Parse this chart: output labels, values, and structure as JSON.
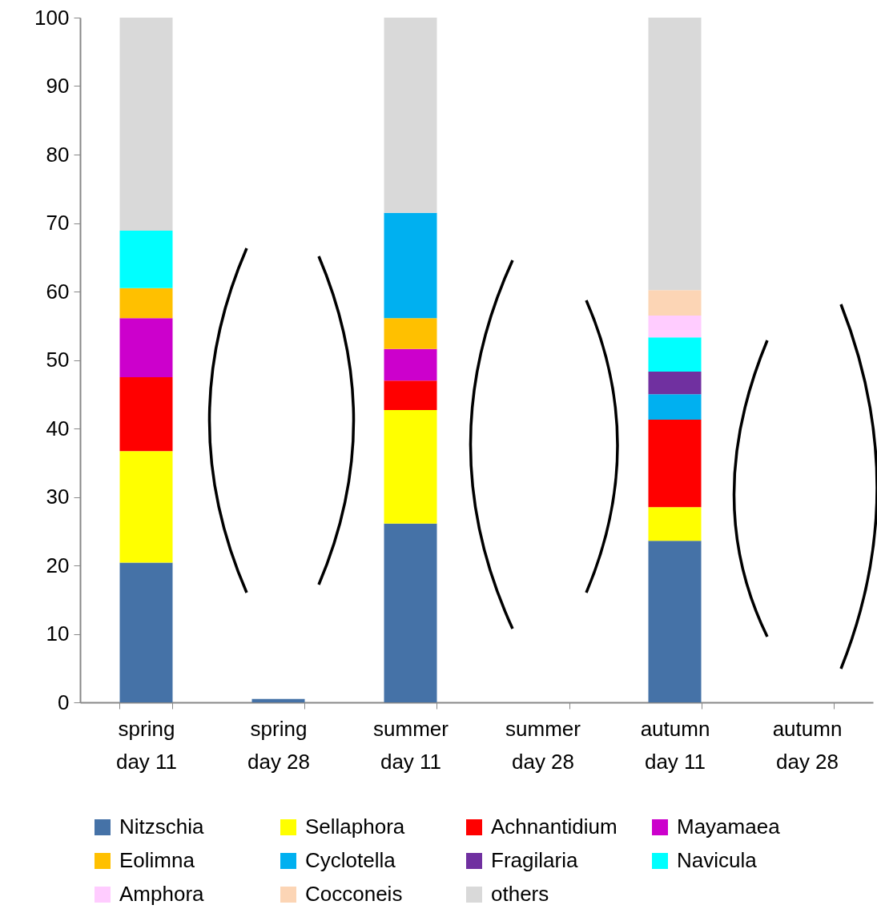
{
  "chart_data": {
    "type": "bar",
    "stacked": true,
    "categories": [
      "spring\nday 11",
      "spring\nday 28",
      "summer\nday 11",
      "summer\nday 28",
      "autumn\nday 11",
      "autumn\nday 28"
    ],
    "series": [
      {
        "name": "Nitzschia",
        "color": "#4572a7",
        "values": [
          20.4,
          0.5,
          26.1,
          0,
          23.6,
          0
        ]
      },
      {
        "name": "Sellaphora",
        "color": "#ffff00",
        "values": [
          16.3,
          0,
          16.6,
          0,
          4.9,
          0
        ]
      },
      {
        "name": "Achnantidium",
        "color": "#ff0000",
        "values": [
          10.8,
          0,
          4.3,
          0,
          12.8,
          0
        ]
      },
      {
        "name": "Mayamaea",
        "color": "#cc00cc",
        "values": [
          8.6,
          0,
          4.6,
          0,
          0,
          0
        ]
      },
      {
        "name": "Eolimna",
        "color": "#ffc000",
        "values": [
          4.4,
          0,
          4.5,
          0,
          0,
          0
        ]
      },
      {
        "name": "Cyclotella",
        "color": "#00b0f0",
        "values": [
          0,
          0,
          15.4,
          0,
          3.7,
          0
        ]
      },
      {
        "name": "Fragilaria",
        "color": "#7030a0",
        "values": [
          0,
          0,
          0,
          0,
          3.3,
          0
        ]
      },
      {
        "name": "Navicula",
        "color": "#00ffff",
        "values": [
          8.4,
          0,
          0,
          0,
          5.0,
          0
        ]
      },
      {
        "name": "Amphora",
        "color": "#ffccff",
        "values": [
          0,
          0,
          0,
          0,
          3.2,
          0
        ]
      },
      {
        "name": "Cocconeis",
        "color": "#fcd5b5",
        "values": [
          0,
          0,
          0,
          0,
          3.7,
          0
        ]
      },
      {
        "name": "others",
        "color": "#d9d9d9",
        "values": [
          31.1,
          0,
          28.5,
          0,
          39.8,
          0
        ]
      }
    ],
    "ylim": [
      0,
      100
    ],
    "yticks": [
      0,
      10,
      20,
      30,
      40,
      50,
      60,
      70,
      80,
      90,
      100
    ],
    "legend": "bottom"
  }
}
